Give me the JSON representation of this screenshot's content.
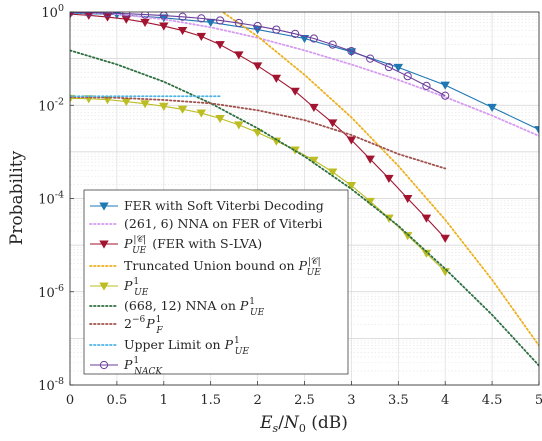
{
  "chart_data": {
    "type": "line",
    "xlabel": "E_s/N_0 (dB)",
    "ylabel": "Probability",
    "xlim": [
      0,
      5
    ],
    "ylim": [
      1e-08,
      1
    ],
    "yscale": "log",
    "grid": true,
    "legend_position": "bottom-left",
    "x_ticks": [
      "0",
      "0.5",
      "1",
      "1.5",
      "2",
      "2.5",
      "3",
      "3.5",
      "4",
      "4.5",
      "5"
    ],
    "y_ticks": [
      {
        "value": 1,
        "exp": "0"
      },
      {
        "value": 0.01,
        "exp": "-2"
      },
      {
        "value": 0.0001,
        "exp": "-4"
      },
      {
        "value": 1e-06,
        "exp": "-6"
      },
      {
        "value": 1e-08,
        "exp": "-8"
      }
    ],
    "series": [
      {
        "name": "FER with Soft Viterbi Decoding",
        "color": "#1f77b4",
        "style": "solid",
        "marker": "triangle-down-filled",
        "x": [
          0,
          0.5,
          1,
          1.5,
          2,
          2.5,
          3,
          3.5,
          4,
          4.5,
          5
        ],
        "y": [
          0.95,
          0.88,
          0.75,
          0.6,
          0.42,
          0.27,
          0.14,
          0.065,
          0.027,
          0.009,
          0.003
        ]
      },
      {
        "name": "(261, 6) NNA on FER of Viterbi",
        "color": "#d59bf0",
        "style": "dotted",
        "marker": "none",
        "x": [
          0,
          0.5,
          1,
          1.5,
          2,
          2.5,
          3,
          3.5,
          4,
          4.5,
          5
        ],
        "y": [
          1.0,
          0.9,
          0.7,
          0.47,
          0.28,
          0.15,
          0.075,
          0.035,
          0.015,
          0.006,
          0.0022
        ]
      },
      {
        "name": "P_UE^|C| (FER with S-LVA)",
        "color": "#a2142f",
        "style": "solid",
        "marker": "triangle-down-filled",
        "x": [
          0,
          0.2,
          0.4,
          0.6,
          0.8,
          1.0,
          1.2,
          1.4,
          1.6,
          1.8,
          2.0,
          2.2,
          2.4,
          2.6,
          2.8,
          3.0,
          3.2,
          3.4,
          3.6,
          3.8,
          4.0
        ],
        "y": [
          0.9,
          0.85,
          0.78,
          0.7,
          0.6,
          0.5,
          0.4,
          0.3,
          0.2,
          0.12,
          0.07,
          0.038,
          0.02,
          0.009,
          0.0042,
          0.0018,
          0.0007,
          0.00027,
          0.0001,
          3.8e-05,
          1.4e-05
        ]
      },
      {
        "name": "Truncated Union bound on P_UE^|C|",
        "color": "#edb120",
        "style": "dotted",
        "marker": "none",
        "x": [
          1.5,
          2,
          2.5,
          3,
          3.5,
          4,
          4.5,
          5
        ],
        "y": [
          1.5,
          0.3,
          0.045,
          0.0055,
          0.0005,
          3.5e-05,
          1.8e-06,
          7e-08
        ]
      },
      {
        "name": "P_UE^1",
        "color": "#bcbd22",
        "style": "solid",
        "marker": "triangle-down-filled",
        "x": [
          0,
          0.2,
          0.4,
          0.6,
          0.8,
          1.0,
          1.2,
          1.4,
          1.6,
          1.8,
          2.0,
          2.2,
          2.4,
          2.6,
          2.8,
          3.0,
          3.2,
          3.4,
          3.6,
          3.8,
          4.0
        ],
        "y": [
          0.014,
          0.0138,
          0.0132,
          0.012,
          0.0108,
          0.0095,
          0.0082,
          0.0068,
          0.0052,
          0.0038,
          0.0026,
          0.0017,
          0.0011,
          0.00066,
          0.00037,
          0.00019,
          8.7e-05,
          3.8e-05,
          1.6e-05,
          6.7e-06,
          2.7e-06
        ]
      },
      {
        "name": "(668, 12) NNA on P_UE^1",
        "color": "#2e6f40",
        "style": "dotted",
        "marker": "none",
        "x": [
          0,
          0.5,
          1,
          1.5,
          2,
          2.5,
          3,
          3.5,
          4,
          4.5,
          5
        ],
        "y": [
          0.15,
          0.075,
          0.032,
          0.011,
          0.0032,
          0.0008,
          0.00016,
          2.6e-05,
          3.1e-06,
          3.2e-07,
          2.6e-08
        ]
      },
      {
        "name": "2^-6 P_F^1",
        "color": "#a0524d",
        "style": "dotted",
        "marker": "none",
        "x": [
          0,
          0.5,
          1,
          1.5,
          2,
          2.5,
          3,
          3.5,
          4
        ],
        "y": [
          0.015,
          0.0145,
          0.013,
          0.011,
          0.0078,
          0.0048,
          0.0023,
          0.0009,
          0.00044
        ]
      },
      {
        "name": "Upper Limit on P_UE^1",
        "color": "#4db3e6",
        "style": "dotted",
        "marker": "none",
        "x": [
          0,
          0.5,
          1,
          1.6
        ],
        "y": [
          0.0156,
          0.0156,
          0.0156,
          0.0156
        ]
      },
      {
        "name": "P_NACK^1",
        "color": "#6a3d9a",
        "style": "solid",
        "marker": "circle-open",
        "x": [
          0,
          0.2,
          0.4,
          0.6,
          0.8,
          1.0,
          1.2,
          1.4,
          1.6,
          1.8,
          2.0,
          2.2,
          2.4,
          2.6,
          2.8,
          3.0,
          3.2,
          3.4,
          3.6,
          3.8,
          4.0
        ],
        "y": [
          0.98,
          0.97,
          0.95,
          0.92,
          0.88,
          0.84,
          0.79,
          0.73,
          0.66,
          0.58,
          0.5,
          0.42,
          0.34,
          0.27,
          0.2,
          0.145,
          0.1,
          0.066,
          0.042,
          0.026,
          0.016
        ]
      }
    ]
  }
}
